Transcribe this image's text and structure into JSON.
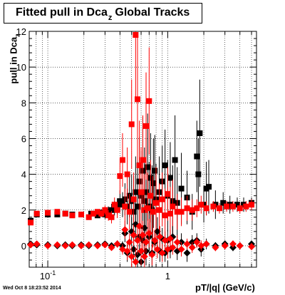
{
  "title": {
    "main": "Fitted pull in Dca",
    "sub": "z",
    "suffix": "Global Tracks"
  },
  "ylabel": {
    "main": "pull in Dca",
    "sub": "z"
  },
  "xlabel": "pT/|q| (GeV/c)",
  "timestamp": "Wed Oct  8 18:23:52 2014",
  "colors": {
    "black_series": "#000000",
    "red_series": "#ff0000",
    "grid": "#000000"
  },
  "chart_data": {
    "type": "scatter",
    "x_scale": "log",
    "xlim": [
      0.07,
      5.5
    ],
    "ylim": [
      -1.2,
      12.0
    ],
    "grid": true,
    "x_ticks": [
      {
        "value": 0.1,
        "label": "10",
        "exp": "-1"
      },
      {
        "value": 1,
        "label": "1",
        "exp": ""
      }
    ],
    "y_ticks": [
      0,
      2,
      4,
      6,
      8,
      10,
      12
    ],
    "series": [
      {
        "color": "black",
        "marker": "square",
        "points": [
          [
            0.072,
            1.4,
            0.15
          ],
          [
            0.081,
            1.75,
            0.08
          ],
          [
            0.1,
            1.75,
            0.06
          ],
          [
            0.12,
            1.75,
            0.05
          ],
          [
            0.14,
            1.8,
            0.05
          ],
          [
            0.16,
            1.75,
            0.06
          ],
          [
            0.19,
            1.75,
            0.07
          ],
          [
            0.23,
            1.8,
            0.1
          ],
          [
            0.26,
            1.7,
            0.15
          ],
          [
            0.28,
            1.85,
            0.2
          ],
          [
            0.3,
            1.75,
            0.25
          ],
          [
            0.32,
            1.9,
            0.3
          ],
          [
            0.34,
            2.0,
            0.35
          ],
          [
            0.36,
            2.1,
            0.4
          ],
          [
            0.38,
            2.2,
            0.45
          ],
          [
            0.4,
            2.5,
            0.6
          ],
          [
            0.42,
            2.3,
            0.7
          ],
          [
            0.44,
            2.6,
            0.9
          ],
          [
            0.46,
            2.2,
            1.0
          ],
          [
            0.48,
            2.8,
            1.2
          ],
          [
            0.5,
            2.5,
            1.5
          ],
          [
            0.52,
            1.9,
            2.0
          ],
          [
            0.54,
            3.0,
            2.0
          ],
          [
            0.56,
            2.2,
            2.5
          ],
          [
            0.58,
            3.6,
            2.5
          ],
          [
            0.6,
            2.8,
            2.5
          ],
          [
            0.62,
            4.2,
            3.0
          ],
          [
            0.64,
            2.5,
            3.0
          ],
          [
            0.66,
            3.0,
            3.0
          ],
          [
            0.68,
            4.4,
            3.0
          ],
          [
            0.7,
            2.2,
            2.5
          ],
          [
            0.72,
            3.8,
            2.5
          ],
          [
            0.74,
            2.0,
            2.5
          ],
          [
            0.76,
            3.5,
            2.5
          ],
          [
            0.78,
            4.2,
            2.0
          ],
          [
            0.8,
            2.6,
            2.0
          ],
          [
            0.85,
            3.0,
            2.0
          ],
          [
            0.9,
            3.6,
            2.0
          ],
          [
            0.95,
            4.5,
            2.0
          ],
          [
            1.0,
            2.8,
            2.0
          ],
          [
            1.05,
            3.8,
            2.0
          ],
          [
            1.1,
            2.5,
            2.0
          ],
          [
            1.15,
            4.8,
            2.5
          ],
          [
            1.2,
            2.4,
            2.0
          ],
          [
            1.3,
            3.2,
            2.0
          ],
          [
            1.45,
            2.7,
            1.5
          ],
          [
            1.6,
            1.9,
            1.0
          ],
          [
            1.75,
            5.0,
            2.0
          ],
          [
            1.8,
            4.0,
            2.0
          ],
          [
            1.85,
            6.3,
            3.0
          ],
          [
            2.0,
            2.3,
            1.0
          ],
          [
            2.1,
            3.2,
            1.5
          ],
          [
            2.2,
            3.3,
            1.5
          ],
          [
            2.5,
            2.3,
            0.8
          ],
          [
            2.9,
            2.4,
            0.6
          ],
          [
            3.3,
            2.3,
            0.5
          ],
          [
            3.8,
            2.3,
            0.4
          ],
          [
            4.3,
            2.3,
            0.4
          ],
          [
            5.0,
            2.4,
            0.3
          ]
        ]
      },
      {
        "color": "red",
        "marker": "square",
        "points": [
          [
            0.072,
            1.3,
            0.15
          ],
          [
            0.081,
            1.8,
            0.08
          ],
          [
            0.1,
            1.85,
            0.06
          ],
          [
            0.12,
            1.9,
            0.05
          ],
          [
            0.14,
            1.8,
            0.05
          ],
          [
            0.16,
            1.7,
            0.06
          ],
          [
            0.19,
            1.75,
            0.07
          ],
          [
            0.22,
            1.6,
            0.1
          ],
          [
            0.24,
            1.8,
            0.12
          ],
          [
            0.26,
            1.9,
            0.15
          ],
          [
            0.28,
            1.8,
            0.2
          ],
          [
            0.3,
            2.0,
            0.25
          ],
          [
            0.32,
            1.7,
            0.3
          ],
          [
            0.34,
            1.6,
            0.35
          ],
          [
            0.36,
            2.3,
            0.4
          ],
          [
            0.38,
            2.0,
            0.45
          ],
          [
            0.4,
            3.9,
            1.0
          ],
          [
            0.42,
            4.8,
            1.5
          ],
          [
            0.44,
            2.2,
            1.0
          ],
          [
            0.46,
            4.0,
            1.5
          ],
          [
            0.48,
            1.9,
            1.0
          ],
          [
            0.5,
            6.8,
            2.5
          ],
          [
            0.52,
            2.6,
            1.5
          ],
          [
            0.54,
            11.8,
            3.5
          ],
          [
            0.56,
            8.2,
            3.5
          ],
          [
            0.58,
            4.5,
            2.5
          ],
          [
            0.6,
            3.0,
            2.5
          ],
          [
            0.62,
            4.8,
            2.5
          ],
          [
            0.64,
            2.0,
            2.0
          ],
          [
            0.66,
            6.7,
            3.0
          ],
          [
            0.68,
            2.1,
            2.0
          ],
          [
            0.7,
            8.1,
            3.0
          ],
          [
            0.72,
            2.8,
            2.0
          ],
          [
            0.75,
            1.9,
            2.0
          ],
          [
            0.8,
            2.4,
            2.0
          ],
          [
            0.85,
            2.0,
            1.5
          ],
          [
            0.9,
            2.6,
            1.5
          ],
          [
            0.95,
            1.7,
            1.5
          ],
          [
            1.0,
            2.9,
            1.5
          ],
          [
            1.05,
            1.8,
            1.5
          ],
          [
            1.1,
            2.2,
            1.5
          ],
          [
            1.2,
            1.9,
            1.0
          ],
          [
            1.3,
            1.9,
            0.8
          ],
          [
            1.45,
            2.1,
            0.7
          ],
          [
            1.6,
            2.0,
            0.6
          ],
          [
            1.75,
            2.1,
            0.5
          ],
          [
            1.9,
            2.3,
            0.5
          ],
          [
            2.1,
            2.1,
            0.4
          ],
          [
            2.4,
            2.2,
            0.3
          ],
          [
            2.7,
            2.1,
            0.3
          ],
          [
            3.1,
            2.2,
            0.3
          ],
          [
            3.5,
            2.2,
            0.3
          ],
          [
            4.0,
            2.1,
            0.3
          ],
          [
            4.5,
            2.2,
            0.3
          ],
          [
            5.0,
            2.3,
            0.3
          ]
        ]
      },
      {
        "color": "black",
        "marker": "diamond",
        "points": [
          [
            0.072,
            0.1,
            0.05
          ],
          [
            0.081,
            0.05,
            0.03
          ],
          [
            0.1,
            0.05,
            0.03
          ],
          [
            0.12,
            0.0,
            0.03
          ],
          [
            0.14,
            0.05,
            0.03
          ],
          [
            0.16,
            0.0,
            0.04
          ],
          [
            0.19,
            0.05,
            0.05
          ],
          [
            0.22,
            0.0,
            0.06
          ],
          [
            0.26,
            0.05,
            0.08
          ],
          [
            0.3,
            0.1,
            0.1
          ],
          [
            0.34,
            0.0,
            0.15
          ],
          [
            0.38,
            0.1,
            0.2
          ],
          [
            0.42,
            0.0,
            0.25
          ],
          [
            0.44,
            0.7,
            0.5
          ],
          [
            0.46,
            -0.4,
            0.5
          ],
          [
            0.5,
            0.8,
            0.8
          ],
          [
            0.52,
            -0.2,
            0.6
          ],
          [
            0.54,
            1.2,
            1.0
          ],
          [
            0.56,
            -0.5,
            0.8
          ],
          [
            0.58,
            0.5,
            0.8
          ],
          [
            0.6,
            -0.9,
            0.6
          ],
          [
            0.62,
            0.3,
            0.8
          ],
          [
            0.64,
            1.0,
            1.0
          ],
          [
            0.66,
            -0.3,
            0.8
          ],
          [
            0.7,
            0.5,
            0.8
          ],
          [
            0.74,
            -0.4,
            0.8
          ],
          [
            0.78,
            0.2,
            0.6
          ],
          [
            0.82,
            0.8,
            0.8
          ],
          [
            0.86,
            -0.3,
            0.6
          ],
          [
            0.9,
            0.4,
            0.6
          ],
          [
            0.95,
            -0.4,
            0.5
          ],
          [
            1.0,
            0.3,
            0.6
          ],
          [
            1.05,
            -0.2,
            0.5
          ],
          [
            1.1,
            0.5,
            0.6
          ],
          [
            1.2,
            -0.3,
            0.5
          ],
          [
            1.3,
            0.2,
            0.5
          ],
          [
            1.45,
            -0.4,
            0.5
          ],
          [
            1.6,
            0.2,
            0.4
          ],
          [
            1.75,
            0.3,
            0.4
          ],
          [
            1.9,
            -0.2,
            0.4
          ],
          [
            2.1,
            0.1,
            0.3
          ],
          [
            2.5,
            0.0,
            0.2
          ],
          [
            3.0,
            0.1,
            0.2
          ],
          [
            3.5,
            -0.1,
            0.2
          ],
          [
            4.0,
            0.0,
            0.2
          ],
          [
            5.0,
            0.1,
            0.2
          ]
        ]
      },
      {
        "color": "red",
        "marker": "diamond",
        "points": [
          [
            0.072,
            0.05,
            0.05
          ],
          [
            0.081,
            0.1,
            0.03
          ],
          [
            0.1,
            0.0,
            0.03
          ],
          [
            0.12,
            0.05,
            0.03
          ],
          [
            0.14,
            0.0,
            0.03
          ],
          [
            0.16,
            0.05,
            0.04
          ],
          [
            0.19,
            0.0,
            0.05
          ],
          [
            0.22,
            0.05,
            0.06
          ],
          [
            0.26,
            0.0,
            0.08
          ],
          [
            0.3,
            0.05,
            0.1
          ],
          [
            0.34,
            -0.1,
            0.15
          ],
          [
            0.38,
            0.1,
            0.2
          ],
          [
            0.42,
            -0.2,
            0.3
          ],
          [
            0.44,
            0.9,
            0.5
          ],
          [
            0.46,
            -0.3,
            0.5
          ],
          [
            0.48,
            0.2,
            0.5
          ],
          [
            0.5,
            -0.6,
            0.6
          ],
          [
            0.52,
            0.6,
            0.6
          ],
          [
            0.54,
            -0.9,
            0.8
          ],
          [
            0.56,
            0.3,
            0.8
          ],
          [
            0.58,
            1.1,
            1.0
          ],
          [
            0.6,
            -0.3,
            0.8
          ],
          [
            0.62,
            0.6,
            0.8
          ],
          [
            0.64,
            -0.6,
            0.6
          ],
          [
            0.66,
            0.2,
            0.6
          ],
          [
            0.7,
            0.7,
            0.8
          ],
          [
            0.74,
            -0.5,
            0.6
          ],
          [
            0.78,
            0.3,
            0.6
          ],
          [
            0.82,
            -0.2,
            0.5
          ],
          [
            0.86,
            0.5,
            0.6
          ],
          [
            0.9,
            -0.4,
            0.5
          ],
          [
            0.95,
            0.3,
            0.5
          ],
          [
            1.0,
            -0.2,
            0.5
          ],
          [
            1.05,
            0.4,
            0.5
          ],
          [
            1.1,
            -0.1,
            0.4
          ],
          [
            1.2,
            0.2,
            0.4
          ],
          [
            1.3,
            -0.2,
            0.4
          ],
          [
            1.45,
            0.1,
            0.3
          ],
          [
            1.6,
            -0.1,
            0.3
          ],
          [
            1.75,
            0.2,
            0.3
          ],
          [
            1.9,
            0.0,
            0.3
          ],
          [
            2.1,
            0.1,
            0.2
          ],
          [
            2.5,
            -0.1,
            0.2
          ],
          [
            3.0,
            0.0,
            0.2
          ],
          [
            3.5,
            0.1,
            0.2
          ],
          [
            4.0,
            0.0,
            0.2
          ],
          [
            5.0,
            -0.05,
            0.2
          ]
        ]
      }
    ]
  }
}
